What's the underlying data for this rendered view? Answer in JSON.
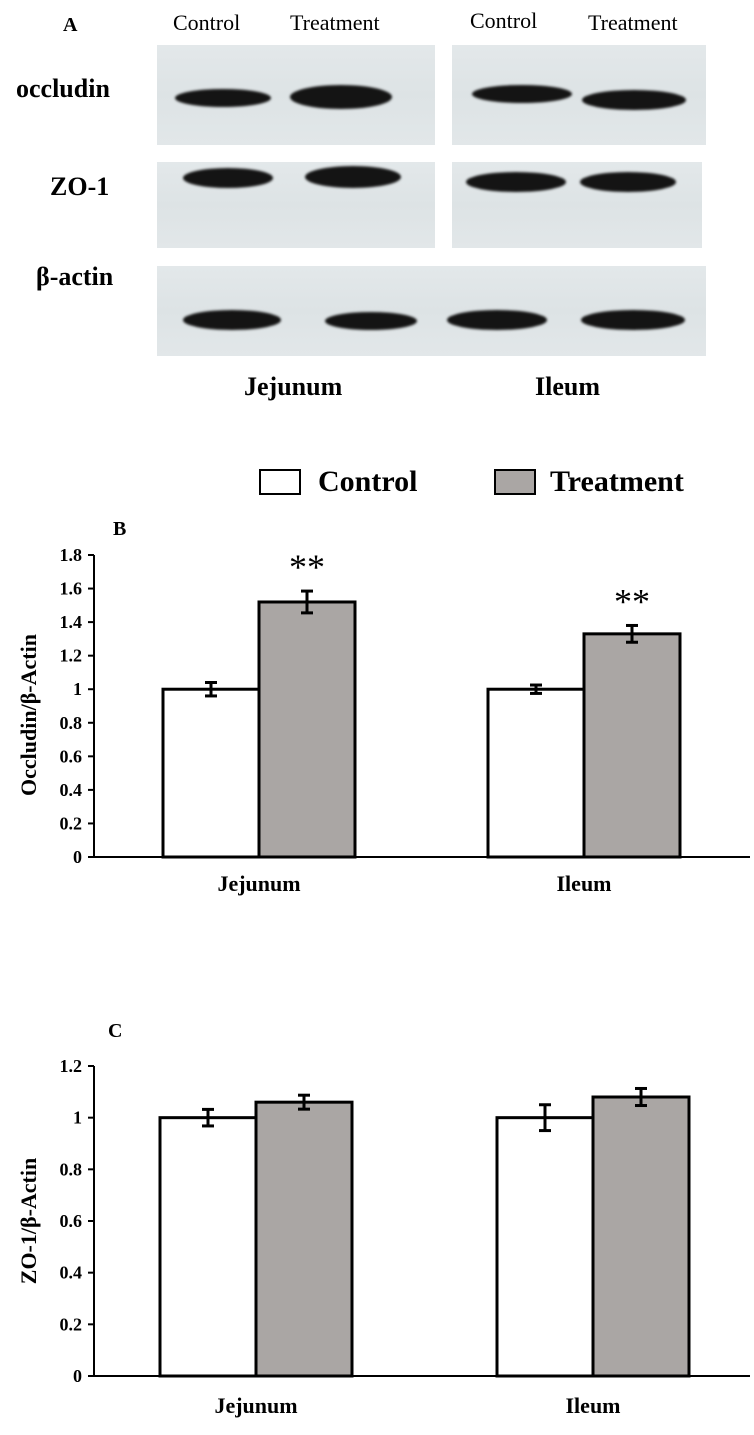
{
  "panel_a": {
    "letter": "A",
    "lane_labels": [
      "Control",
      "Treatment",
      "Control",
      "Treatment"
    ],
    "proteins": [
      "occludin",
      "ZO-1",
      "β-actin"
    ],
    "tissues": [
      "Jejunum",
      "Ileum"
    ]
  },
  "legend": {
    "control": "Control",
    "treatment": "Treatment"
  },
  "colors": {
    "control": "#ffffff",
    "treatment": "#aaa6a4",
    "stroke": "#000000"
  },
  "chart_data": [
    {
      "panel": "B",
      "type": "bar",
      "categories": [
        "Jejunum",
        "Ileum"
      ],
      "series": [
        {
          "name": "Control",
          "values": [
            1.0,
            1.0
          ],
          "errors": [
            0.04,
            0.025
          ]
        },
        {
          "name": "Treatment",
          "values": [
            1.52,
            1.33
          ],
          "errors": [
            0.065,
            0.05
          ]
        }
      ],
      "significance": [
        "**",
        "**"
      ],
      "ylabel": "Occludin/β-Actin",
      "ylim": [
        0,
        1.8
      ],
      "yticks": [
        "0",
        "0.2",
        "0.4",
        "0.6",
        "0.8",
        "1",
        "1.2",
        "1.4",
        "1.6",
        "1.8"
      ]
    },
    {
      "panel": "C",
      "type": "bar",
      "categories": [
        "Jejunum",
        "Ileum"
      ],
      "series": [
        {
          "name": "Control",
          "values": [
            1.0,
            1.0
          ],
          "errors": [
            0.032,
            0.05
          ]
        },
        {
          "name": "Treatment",
          "values": [
            1.06,
            1.08
          ],
          "errors": [
            0.027,
            0.033
          ]
        }
      ],
      "ylabel": "ZO-1/β-Actin",
      "ylim": [
        0,
        1.2
      ],
      "yticks": [
        "0",
        "0.2",
        "0.4",
        "0.6",
        "0.8",
        "1",
        "1.2"
      ]
    }
  ]
}
